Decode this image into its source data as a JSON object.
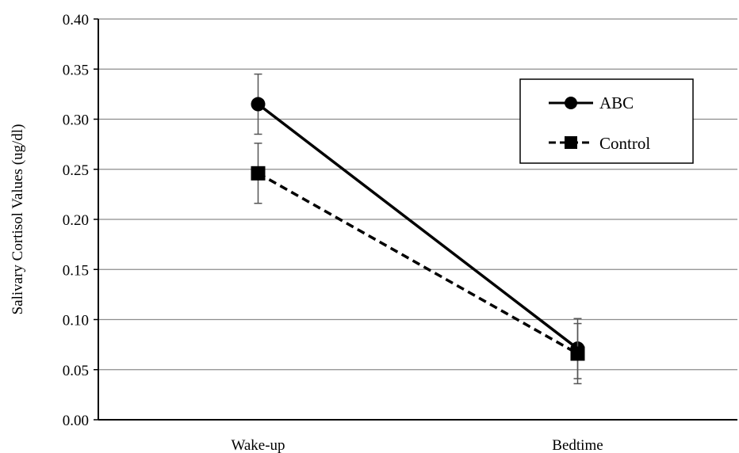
{
  "chart_data": {
    "type": "line",
    "title": "",
    "xlabel": "",
    "ylabel": "Salivary Cortisol Values (ug/dl)",
    "categories": [
      "Wake-up",
      "Bedtime"
    ],
    "ylim": [
      0,
      0.4
    ],
    "yticks": [
      "0.00",
      "0.05",
      "0.10",
      "0.15",
      "0.20",
      "0.25",
      "0.30",
      "0.35",
      "0.40"
    ],
    "grid": true,
    "legend_position": "top-right",
    "series": [
      {
        "name": "ABC",
        "values": [
          0.315,
          0.071
        ],
        "error": [
          0.03,
          0.03
        ],
        "marker": "circle",
        "line_style": "solid",
        "color": "#000000"
      },
      {
        "name": "Control",
        "values": [
          0.246,
          0.066
        ],
        "error": [
          0.03,
          0.03
        ],
        "marker": "square",
        "line_style": "dashed",
        "color": "#000000"
      }
    ]
  },
  "colors": {
    "grid": "#8c8c8c",
    "axis": "#000000",
    "background": "#ffffff"
  }
}
